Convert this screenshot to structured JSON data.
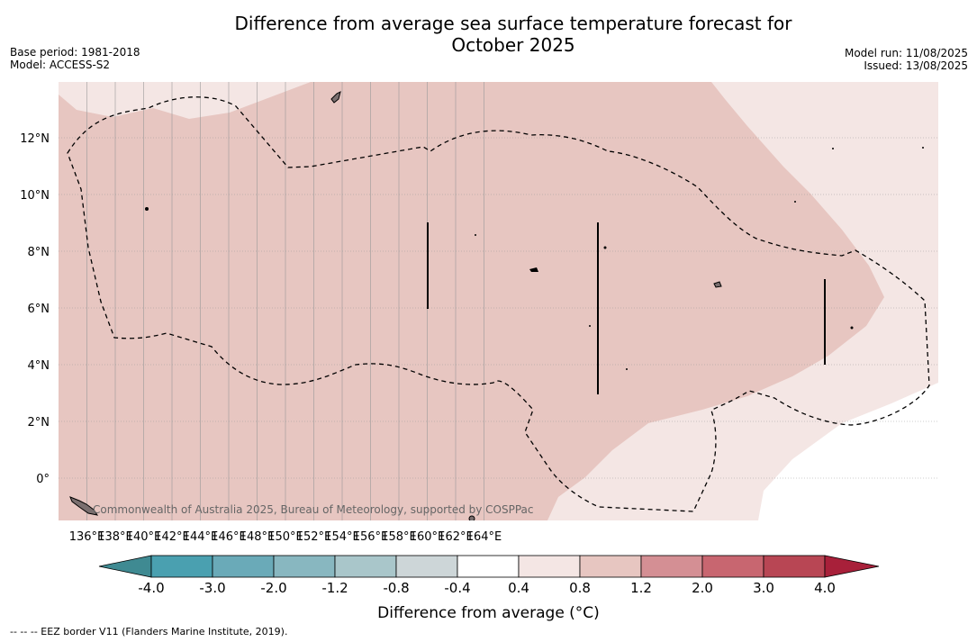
{
  "header": {
    "title_line1": "Difference from average sea surface temperature forecast for",
    "title_line2": "October 2025",
    "base_period": "Base period: 1981-2018",
    "model": "Model: ACCESS-S2",
    "model_run": "Model run: 11/08/2025",
    "issued": "Issued: 13/08/2025"
  },
  "map": {
    "lat_labels": [
      "12°N",
      "10°N",
      "8°N",
      "6°N",
      "4°N",
      "2°N",
      "0°"
    ],
    "lon_labels": [
      "136°E",
      "138°E",
      "140°E",
      "142°E",
      "144°E",
      "146°E",
      "148°E",
      "150°E",
      "152°E",
      "154°E",
      "156°E",
      "158°E",
      "160°E",
      "162°E",
      "164°E"
    ],
    "copyright": "Commonwealth of Australia 2025, Bureau of Meteorology, supported by COSPPac",
    "colors": {
      "ocean_0_4": "#f4e6e4",
      "ocean_0_8": "#e7c6c1",
      "land": "#7a6f6f"
    }
  },
  "colorbar": {
    "labels": [
      "-4.0",
      "-3.0",
      "-2.0",
      "-1.2",
      "-0.8",
      "-0.4",
      "0.4",
      "0.8",
      "1.2",
      "2.0",
      "3.0",
      "4.0"
    ],
    "colors": [
      "#4aa0b0",
      "#6aaab8",
      "#88b7c0",
      "#a9c6ca",
      "#cdd6d8",
      "#ffffff",
      "#f4e6e4",
      "#e7c6c1",
      "#d48f94",
      "#c86670",
      "#b84654"
    ],
    "under_color": "#3f8a92",
    "over_color": "#a8203a",
    "title": "Difference from average (°C)"
  },
  "footnote": "--  --  -- EEZ border V11 (Flanders Marine Institute, 2019)."
}
